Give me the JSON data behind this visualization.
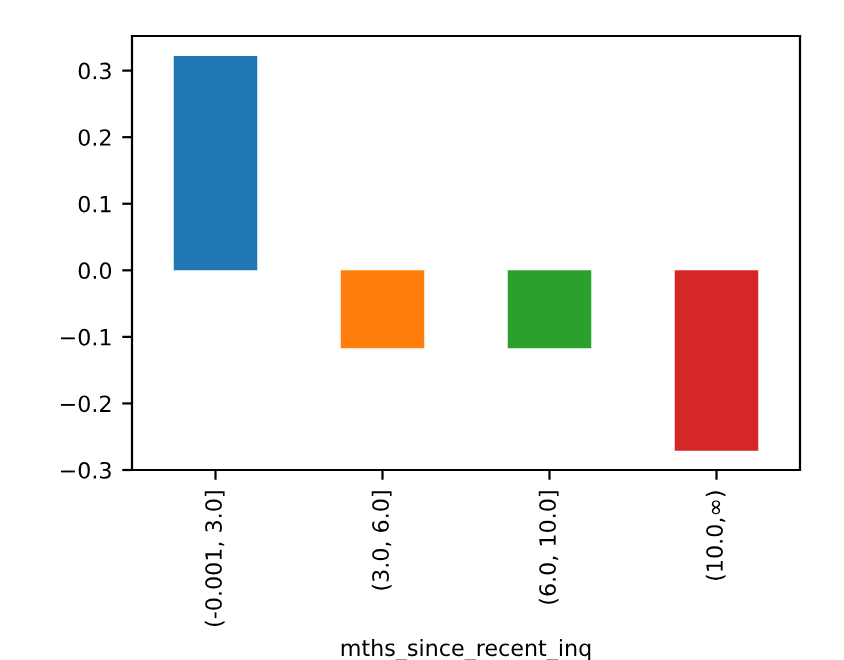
{
  "chart_data": {
    "type": "bar",
    "xlabel": "mths_since_recent_inq",
    "categories": [
      "(-0.001, 3.0]",
      "(3.0, 6.0]",
      "(6.0, 10.0]",
      "(10.0,∞)"
    ],
    "values": [
      0.322,
      -0.117,
      -0.117,
      -0.271
    ],
    "colors": [
      "#1f77b4",
      "#ff7f0e",
      "#2ca02c",
      "#d62728"
    ],
    "ylim": [
      -0.3,
      0.352
    ],
    "yticks": [
      {
        "value": -0.3,
        "label": "−0.3"
      },
      {
        "value": -0.2,
        "label": "−0.2"
      },
      {
        "value": -0.1,
        "label": "−0.1"
      },
      {
        "value": 0,
        "label": "0.0"
      },
      {
        "value": 0.1,
        "label": "0.1"
      },
      {
        "value": 0.2,
        "label": "0.2"
      },
      {
        "value": 0.3,
        "label": "0.3"
      }
    ],
    "grid": false,
    "legend": false
  }
}
